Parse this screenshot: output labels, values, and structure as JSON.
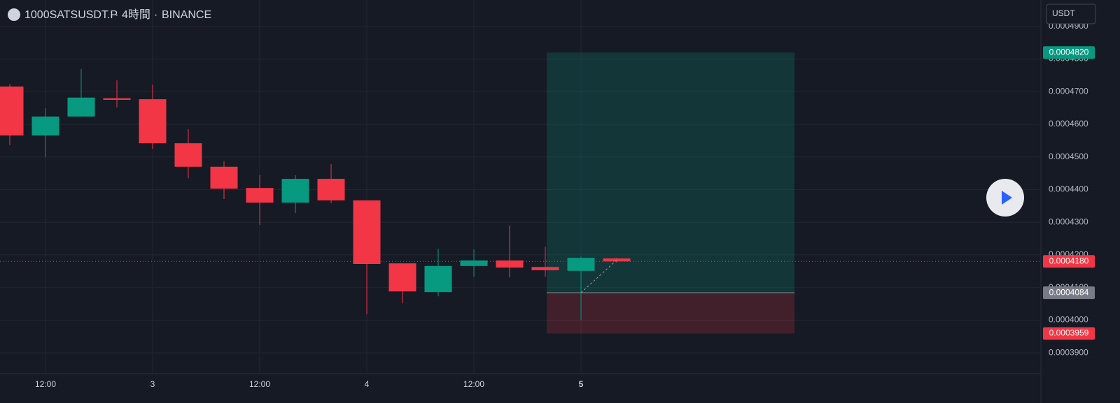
{
  "chart_data": {
    "type": "candlestick",
    "symbol": "1000SATSUSDT.P",
    "interval": "4時間",
    "exchange": "BINANCE",
    "currency": "USDT",
    "up_color": "#089981",
    "down_color": "#f23645",
    "categories": [
      null,
      "12:00",
      null,
      null,
      "3",
      null,
      null,
      "12:00",
      null,
      null,
      "4",
      null,
      null,
      "12:00",
      null,
      null,
      "5",
      null
    ],
    "open": [
      0.0004716,
      0.0004566,
      0.0004624,
      0.000468,
      0.0004677,
      0.0004542,
      0.000447,
      0.0004405,
      0.000436,
      0.0004433,
      0.0004367,
      0.0004174,
      0.0004086,
      0.0004166,
      0.0004183,
      0.0004163,
      0.0004151,
      0.0004189
    ],
    "high": [
      0.0004724,
      0.0004649,
      0.0004769,
      0.0004735,
      0.0004722,
      0.0004585,
      0.0004487,
      0.0004444,
      0.0004444,
      0.0004478,
      0.0004367,
      0.0004174,
      0.0004219,
      0.0004217,
      0.000429,
      0.0004225,
      0.0004195,
      0.0004191
    ],
    "low": [
      0.0004536,
      0.00045,
      0.0004624,
      0.0004652,
      0.0004525,
      0.0004435,
      0.0004371,
      0.0004292,
      0.0004328,
      0.0004358,
      0.0004018,
      0.0004052,
      0.0004073,
      0.0004133,
      0.0004131,
      0.0004133,
      0.0004001,
      0.0004176
    ],
    "close": [
      0.0004566,
      0.0004624,
      0.0004682,
      0.0004675,
      0.0004542,
      0.000447,
      0.0004403,
      0.000436,
      0.0004433,
      0.0004367,
      0.0004172,
      0.0004088,
      0.0004166,
      0.0004183,
      0.0004161,
      0.0004153,
      0.0004191,
      0.000418
    ],
    "ylim": [
      0.0003836,
      0.0004981
    ],
    "yticks": [
      {
        "value": 0.00039,
        "label": "0.0003900"
      },
      {
        "value": 0.0004,
        "label": "0.0004000"
      },
      {
        "value": 0.00041,
        "label": "0.0004100"
      },
      {
        "value": 0.00042,
        "label": "0.0004200"
      },
      {
        "value": 0.00043,
        "label": "0.0004300"
      },
      {
        "value": 0.00044,
        "label": "0.0004400"
      },
      {
        "value": 0.00045,
        "label": "0.0004500"
      },
      {
        "value": 0.00046,
        "label": "0.0004600"
      },
      {
        "value": 0.00047,
        "label": "0.0004700"
      },
      {
        "value": 0.00048,
        "label": "0.0004800"
      },
      {
        "value": 0.00049,
        "label": "0.0004900"
      }
    ],
    "grid": true,
    "last_price": {
      "value": 0.000418,
      "label": "0.0004180"
    },
    "position": {
      "target": {
        "value": 0.000482,
        "label": "0.0004820"
      },
      "entry": {
        "value": 0.0004084,
        "label": "0.0004084"
      },
      "stop": {
        "value": 0.0003959,
        "label": "0.0003959"
      }
    }
  }
}
